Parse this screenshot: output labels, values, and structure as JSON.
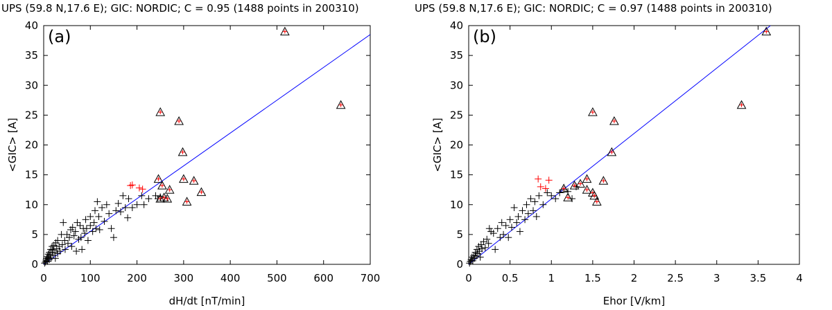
{
  "chart_data": [
    {
      "type": "scatter",
      "title": "UPS (59.8 N,17.6 E); GIC: NORDIC; C = 0.95 (1488 points in 200310)",
      "panel_label": "(a)",
      "xlabel": "dH/dt [nT/min]",
      "ylabel": "<GIC> [A]",
      "xlim": [
        0,
        700
      ],
      "ylim": [
        0,
        40
      ],
      "xticks": [
        "0",
        "100",
        "200",
        "300",
        "400",
        "500",
        "600",
        "700"
      ],
      "yticks": [
        "0",
        "5",
        "10",
        "15",
        "20",
        "25",
        "30",
        "35",
        "40"
      ],
      "grid": false,
      "fit_line": {
        "x": [
          0,
          700
        ],
        "y": [
          0,
          38.5
        ],
        "color": "#0000ff"
      },
      "series": [
        {
          "marker": "plus",
          "color": "#000000",
          "points": [
            [
              2,
              0.2
            ],
            [
              4,
              0.4
            ],
            [
              5,
              0.7
            ],
            [
              6,
              1.0
            ],
            [
              8,
              0.5
            ],
            [
              8,
              1.3
            ],
            [
              10,
              1.1
            ],
            [
              10,
              1.7
            ],
            [
              12,
              0.8
            ],
            [
              12,
              2.0
            ],
            [
              14,
              1.5
            ],
            [
              15,
              2.5
            ],
            [
              16,
              1.0
            ],
            [
              18,
              2.0
            ],
            [
              18,
              3.0
            ],
            [
              20,
              1.5
            ],
            [
              20,
              2.4
            ],
            [
              22,
              3.2
            ],
            [
              24,
              2.0
            ],
            [
              25,
              1.0
            ],
            [
              26,
              3.6
            ],
            [
              28,
              2.6
            ],
            [
              30,
              4.0
            ],
            [
              30,
              1.8
            ],
            [
              33,
              3.0
            ],
            [
              35,
              2.2
            ],
            [
              38,
              5.0
            ],
            [
              40,
              3.3
            ],
            [
              42,
              7.0
            ],
            [
              45,
              4.0
            ],
            [
              46,
              2.5
            ],
            [
              50,
              5.0
            ],
            [
              52,
              3.5
            ],
            [
              55,
              4.5
            ],
            [
              58,
              5.8
            ],
            [
              60,
              3.0
            ],
            [
              62,
              6.2
            ],
            [
              65,
              4.8
            ],
            [
              68,
              5.5
            ],
            [
              70,
              2.2
            ],
            [
              72,
              7.0
            ],
            [
              75,
              4.2
            ],
            [
              78,
              6.5
            ],
            [
              80,
              4.5
            ],
            [
              82,
              2.5
            ],
            [
              85,
              6.0
            ],
            [
              88,
              5.2
            ],
            [
              90,
              7.5
            ],
            [
              92,
              6.0
            ],
            [
              95,
              4.0
            ],
            [
              100,
              6.5
            ],
            [
              100,
              8.0
            ],
            [
              105,
              5.5
            ],
            [
              108,
              7.0
            ],
            [
              110,
              9.0
            ],
            [
              112,
              6.0
            ],
            [
              115,
              10.5
            ],
            [
              118,
              8.0
            ],
            [
              120,
              5.8
            ],
            [
              125,
              9.5
            ],
            [
              130,
              7.2
            ],
            [
              135,
              10.0
            ],
            [
              140,
              8.5
            ],
            [
              145,
              6.0
            ],
            [
              150,
              4.5
            ],
            [
              155,
              9.0
            ],
            [
              160,
              10.2
            ],
            [
              165,
              8.8
            ],
            [
              170,
              11.5
            ],
            [
              175,
              9.5
            ],
            [
              180,
              7.8
            ],
            [
              182,
              11.0
            ],
            [
              190,
              9.5
            ],
            [
              200,
              10.0
            ],
            [
              210,
              11.5
            ],
            [
              215,
              10.0
            ],
            [
              225,
              11.0
            ],
            [
              240,
              11.5
            ],
            [
              245,
              11.0
            ],
            [
              250,
              11.3
            ]
          ]
        },
        {
          "marker": "plus",
          "color": "#ff0000",
          "points": [
            [
              186,
              13.2
            ],
            [
              190,
              13.3
            ],
            [
              205,
              12.8
            ],
            [
              212,
              12.6
            ]
          ]
        },
        {
          "marker": "triangle",
          "color": "#000000",
          "points": [
            [
              517,
              39.0
            ],
            [
              637,
              26.7
            ],
            [
              250,
              25.5
            ],
            [
              290,
              24.0
            ],
            [
              298,
              18.8
            ],
            [
              246,
              14.3
            ],
            [
              254,
              13.2
            ],
            [
              270,
              12.5
            ],
            [
              300,
              14.3
            ],
            [
              322,
              14.0
            ],
            [
              338,
              12.1
            ],
            [
              307,
              10.5
            ],
            [
              250,
              11.0
            ],
            [
              258,
              11.2
            ],
            [
              265,
              11.0
            ]
          ]
        }
      ]
    },
    {
      "type": "scatter",
      "title": "UPS (59.8 N,17.6 E); GIC: NORDIC; C = 0.97 (1488 points in 200310)",
      "panel_label": "(b)",
      "xlabel": "Ehor [V/km]",
      "ylabel": "<GIC> [A]",
      "xlim": [
        0,
        4
      ],
      "ylim": [
        0,
        40
      ],
      "xticks": [
        "0",
        "0.5",
        "1",
        "1.5",
        "2",
        "2.5",
        "3",
        "3.5",
        "4"
      ],
      "yticks": [
        "0",
        "5",
        "10",
        "15",
        "20",
        "25",
        "30",
        "35",
        "40"
      ],
      "grid": false,
      "fit_line": {
        "x": [
          0,
          3.65
        ],
        "y": [
          0,
          40
        ],
        "color": "#0000ff"
      },
      "series": [
        {
          "marker": "plus",
          "color": "#000000",
          "points": [
            [
              0.01,
              0.2
            ],
            [
              0.02,
              0.5
            ],
            [
              0.03,
              0.8
            ],
            [
              0.04,
              1.2
            ],
            [
              0.05,
              0.6
            ],
            [
              0.06,
              1.5
            ],
            [
              0.07,
              1.0
            ],
            [
              0.08,
              2.0
            ],
            [
              0.09,
              1.4
            ],
            [
              0.1,
              2.5
            ],
            [
              0.11,
              1.8
            ],
            [
              0.12,
              3.0
            ],
            [
              0.13,
              2.2
            ],
            [
              0.14,
              1.2
            ],
            [
              0.15,
              3.3
            ],
            [
              0.16,
              2.6
            ],
            [
              0.18,
              3.8
            ],
            [
              0.2,
              2.8
            ],
            [
              0.22,
              4.2
            ],
            [
              0.24,
              3.5
            ],
            [
              0.25,
              6.0
            ],
            [
              0.27,
              5.5
            ],
            [
              0.3,
              5.2
            ],
            [
              0.32,
              2.5
            ],
            [
              0.35,
              6.0
            ],
            [
              0.38,
              4.5
            ],
            [
              0.4,
              7.0
            ],
            [
              0.42,
              5.0
            ],
            [
              0.45,
              6.5
            ],
            [
              0.48,
              4.5
            ],
            [
              0.5,
              7.5
            ],
            [
              0.52,
              6.2
            ],
            [
              0.55,
              9.5
            ],
            [
              0.58,
              7.0
            ],
            [
              0.6,
              8.0
            ],
            [
              0.62,
              5.5
            ],
            [
              0.65,
              9.0
            ],
            [
              0.68,
              7.5
            ],
            [
              0.7,
              10.0
            ],
            [
              0.72,
              8.5
            ],
            [
              0.75,
              11.0
            ],
            [
              0.78,
              9.0
            ],
            [
              0.8,
              10.5
            ],
            [
              0.82,
              8.0
            ],
            [
              0.85,
              11.5
            ],
            [
              0.9,
              10.0
            ],
            [
              0.95,
              12.0
            ],
            [
              1.0,
              11.5
            ],
            [
              1.05,
              11.0
            ],
            [
              1.1,
              12.0
            ],
            [
              1.15,
              12.5
            ],
            [
              1.2,
              12.2
            ],
            [
              1.25,
              11.0
            ],
            [
              1.3,
              13.0
            ]
          ]
        },
        {
          "marker": "plus",
          "color": "#ff0000",
          "points": [
            [
              0.84,
              14.3
            ],
            [
              0.87,
              13.0
            ],
            [
              0.93,
              12.7
            ],
            [
              0.97,
              14.1
            ]
          ]
        },
        {
          "marker": "triangle",
          "color": "#000000",
          "points": [
            [
              3.6,
              39.0
            ],
            [
              3.3,
              26.7
            ],
            [
              1.5,
              25.5
            ],
            [
              1.76,
              24.0
            ],
            [
              1.73,
              18.8
            ],
            [
              1.43,
              14.3
            ],
            [
              1.43,
              12.5
            ],
            [
              1.5,
              12.0
            ],
            [
              1.52,
              11.5
            ],
            [
              1.55,
              10.5
            ],
            [
              1.63,
              14.0
            ],
            [
              1.28,
              13.2
            ],
            [
              1.35,
              13.5
            ],
            [
              1.2,
              11.2
            ],
            [
              1.15,
              12.7
            ]
          ]
        }
      ]
    }
  ]
}
